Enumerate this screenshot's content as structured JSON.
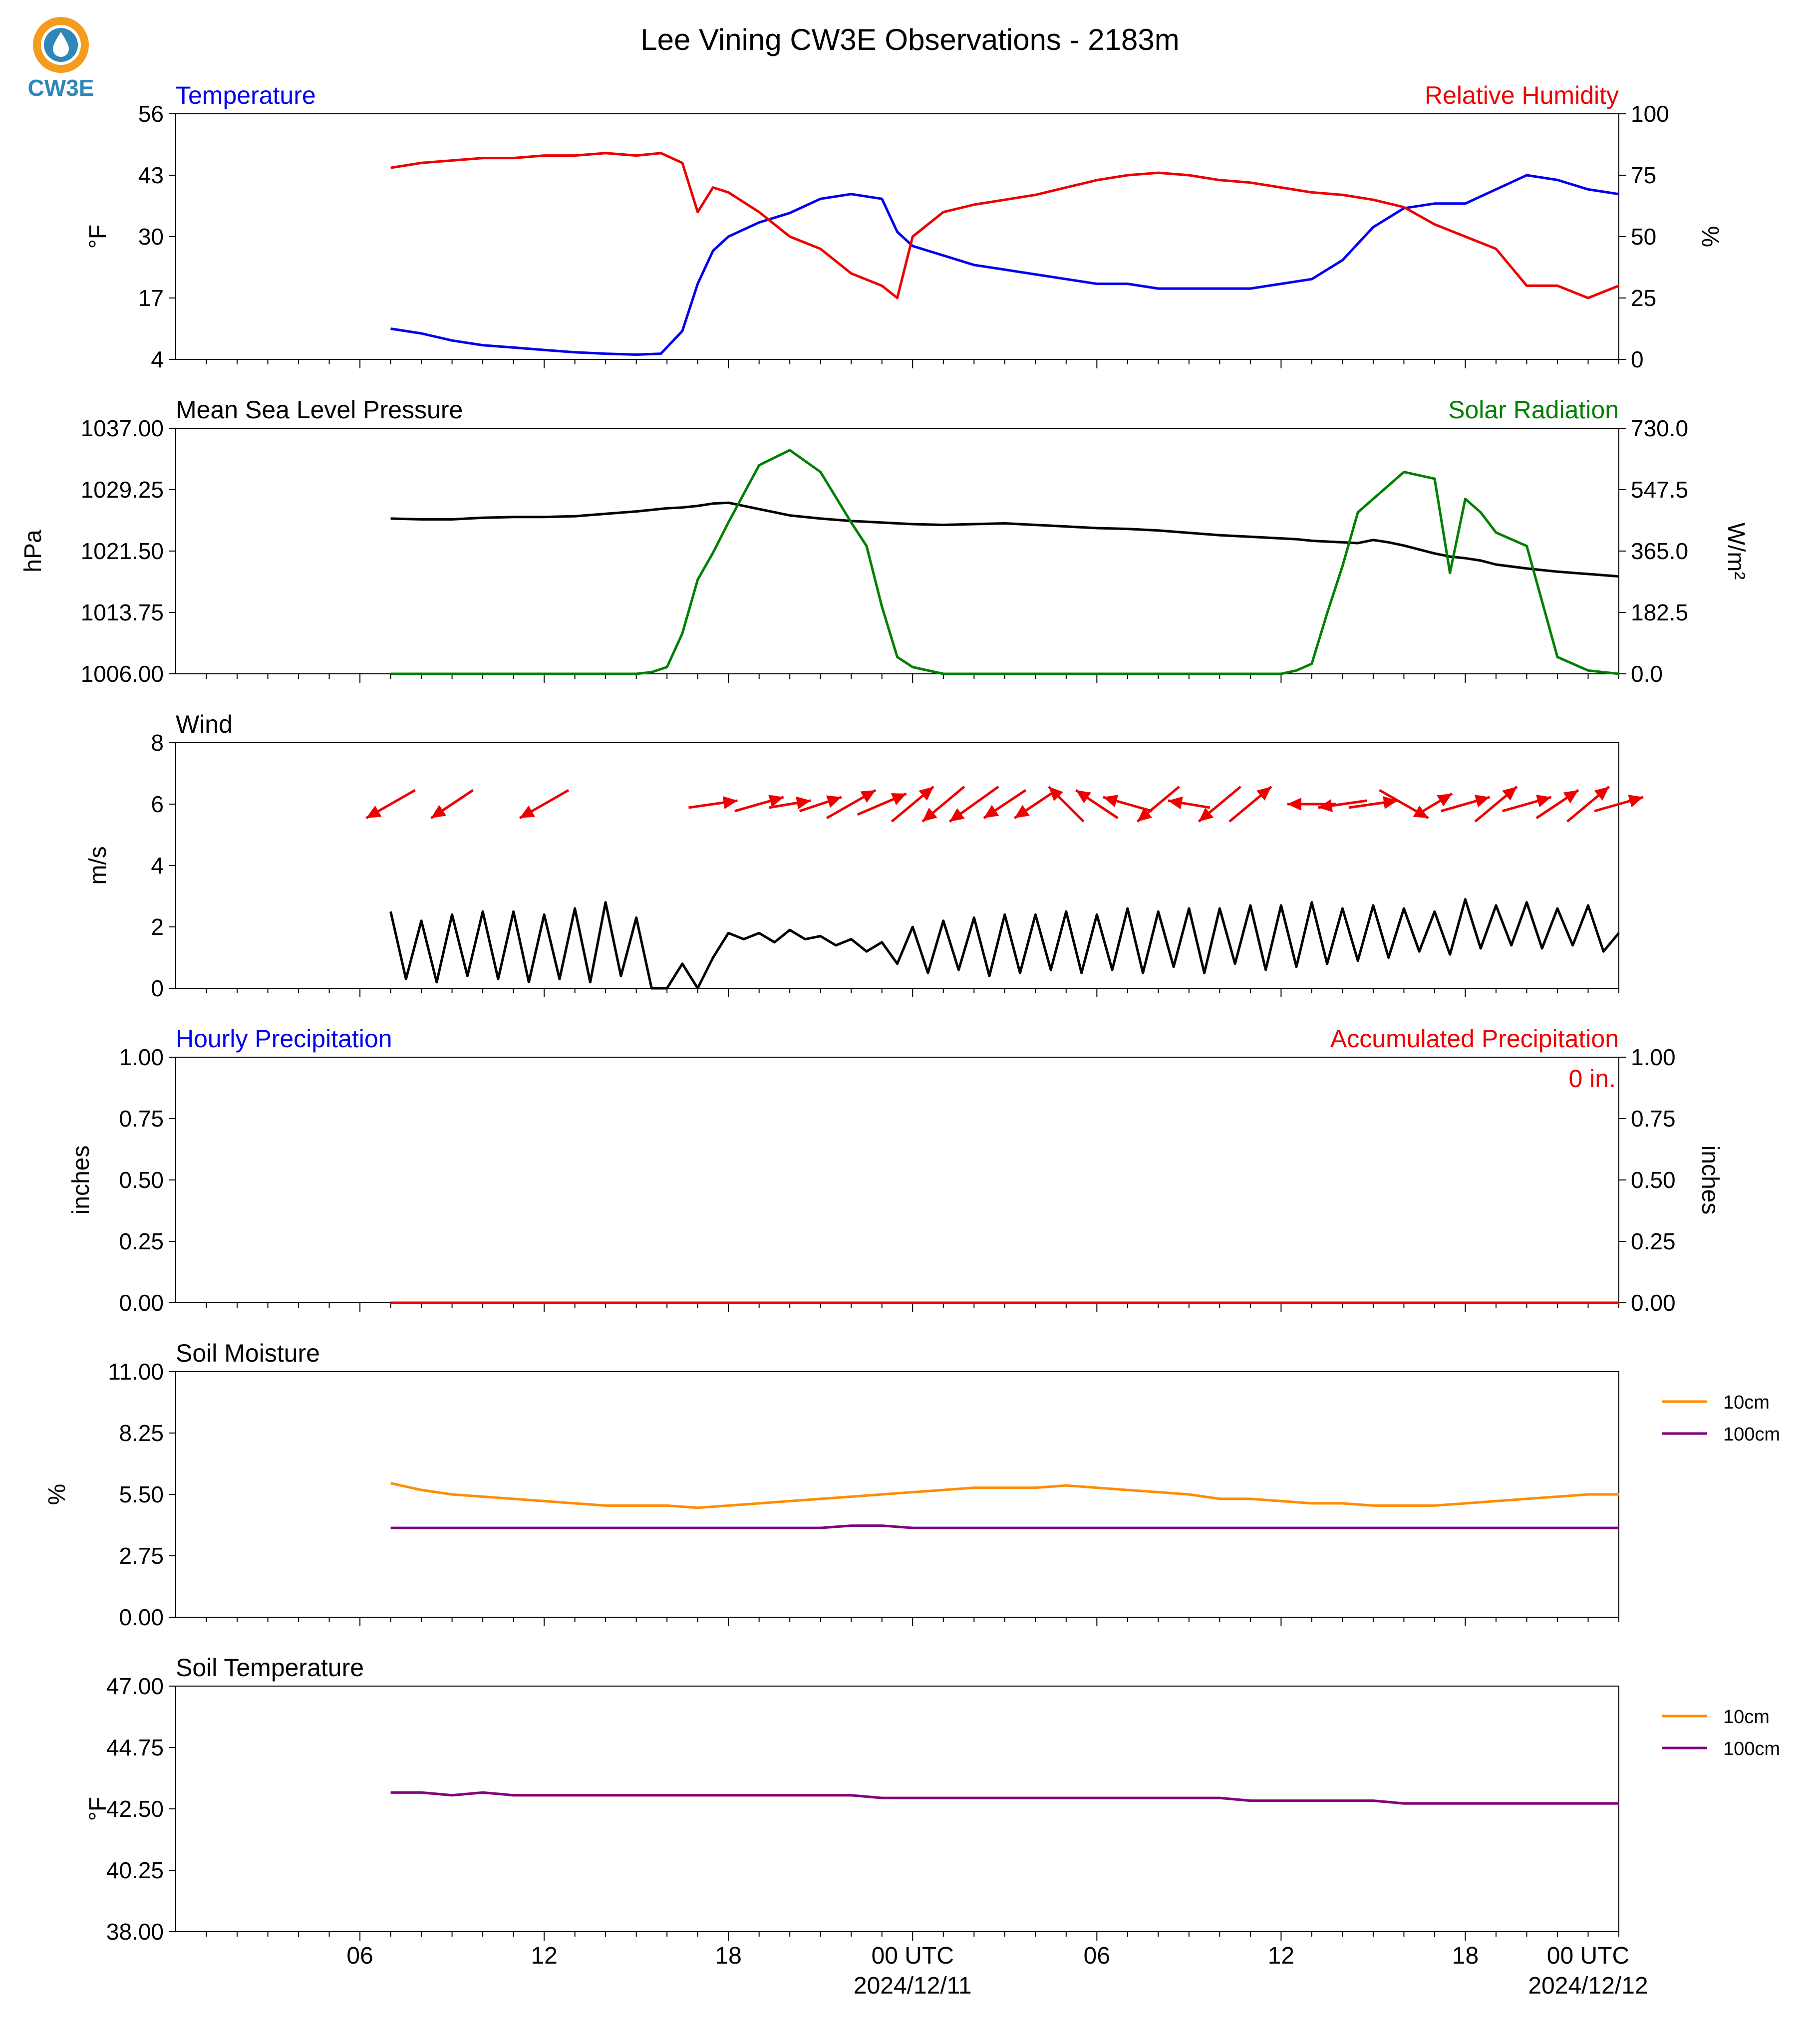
{
  "title": "Lee Vining CW3E Observations - 2183m",
  "logo": {
    "text": "CW3E",
    "color": "#2e87b7",
    "accent": "#f39c1f"
  },
  "x_axis": {
    "tick_labels": [
      "06",
      "12",
      "18",
      "00 UTC",
      "06",
      "12",
      "18",
      "00 UTC"
    ],
    "date_labels": [
      "2024/12/11",
      "2024/12/12"
    ],
    "range_hours": [
      0,
      47
    ]
  },
  "chart_data": [
    {
      "type": "line",
      "left_title": "Temperature",
      "right_title": "Relative Humidity",
      "left_ylabel": "°F",
      "right_ylabel": "%",
      "left_ticks": [
        "4",
        "17",
        "30",
        "43",
        "56"
      ],
      "right_ticks": [
        "0",
        "25",
        "50",
        "75",
        "100"
      ],
      "ylim_left": [
        4,
        56
      ],
      "ylim_right": [
        0,
        100
      ],
      "colors": {
        "left": "#0000ee",
        "right": "#ee0000"
      },
      "x": [
        7.0,
        8.0,
        9.0,
        10.0,
        11.0,
        12.0,
        13.0,
        14.0,
        15.0,
        15.8,
        16.5,
        17.0,
        17.5,
        18.0,
        19.0,
        20.0,
        21.0,
        22.0,
        23.0,
        23.5,
        24.0,
        25.0,
        26.0,
        27.0,
        28.0,
        29.0,
        30.0,
        31.0,
        32.0,
        33.0,
        34.0,
        35.0,
        36.0,
        37.0,
        38.0,
        39.0,
        40.0,
        41.0,
        42.0,
        43.0,
        44.0,
        45.0,
        46.0,
        47.0
      ],
      "series": [
        {
          "values": [
            10.5,
            9.5,
            8.0,
            7.0,
            6.5,
            6.0,
            5.5,
            5.2,
            5.0,
            5.2,
            10,
            20,
            27,
            30,
            33,
            35,
            38,
            39,
            38,
            31,
            28,
            26,
            24,
            23,
            22,
            21,
            20,
            20,
            19,
            19,
            19,
            19,
            20,
            21,
            25,
            32,
            36,
            37,
            37,
            40,
            43,
            42,
            40,
            39
          ]
        },
        {
          "values": [
            78,
            80,
            81,
            82,
            82,
            83,
            83,
            84,
            83,
            84,
            80,
            60,
            70,
            68,
            60,
            50,
            45,
            35,
            30,
            25,
            50,
            60,
            63,
            65,
            67,
            70,
            73,
            75,
            76,
            75,
            73,
            72,
            70,
            68,
            67,
            65,
            62,
            55,
            50,
            45,
            30,
            30,
            25,
            30
          ]
        }
      ]
    },
    {
      "type": "line",
      "left_title": "Mean Sea Level Pressure",
      "right_title": "Solar Radiation",
      "left_ylabel": "hPa",
      "right_ylabel": "W/m²",
      "left_ticks": [
        "1006.00",
        "1013.75",
        "1021.50",
        "1029.25",
        "1037.00"
      ],
      "right_ticks": [
        "0.0",
        "182.5",
        "365.0",
        "547.5",
        "730.0"
      ],
      "ylim_left": [
        1006,
        1037
      ],
      "ylim_right": [
        0,
        730
      ],
      "colors": {
        "left": "#000000",
        "right": "#008000"
      },
      "x": [
        7.0,
        8.0,
        9.0,
        10.0,
        11.0,
        12.0,
        13.0,
        14.0,
        15.0,
        15.5,
        16.0,
        16.5,
        17.0,
        17.5,
        18.0,
        19.0,
        20.0,
        21.0,
        22.0,
        22.5,
        23.0,
        23.5,
        24.0,
        25.0,
        26.0,
        27.0,
        28.0,
        29.0,
        30.0,
        31.0,
        32.0,
        33.0,
        34.0,
        35.0,
        36.0,
        36.5,
        37.0,
        37.5,
        38.0,
        38.5,
        39.0,
        39.5,
        40.0,
        41.0,
        41.5,
        42.0,
        42.5,
        43.0,
        44.0,
        45.0,
        46.0,
        47.0
      ],
      "series": [
        {
          "values": [
            1025.6,
            1025.5,
            1025.5,
            1025.7,
            1025.8,
            1025.8,
            1025.9,
            1026.2,
            1026.5,
            1026.7,
            1026.9,
            1027.0,
            1027.2,
            1027.5,
            1027.6,
            1026.8,
            1026.0,
            1025.6,
            1025.3,
            1025.2,
            1025.1,
            1025.0,
            1024.9,
            1024.8,
            1024.9,
            1025.0,
            1024.8,
            1024.6,
            1024.4,
            1024.3,
            1024.1,
            1023.8,
            1023.5,
            1023.3,
            1023.1,
            1023.0,
            1022.8,
            1022.7,
            1022.6,
            1022.5,
            1022.9,
            1022.6,
            1022.2,
            1021.2,
            1020.8,
            1020.6,
            1020.3,
            1019.8,
            1019.3,
            1018.9,
            1018.6,
            1018.3
          ]
        },
        {
          "values": [
            0,
            0,
            0,
            0,
            0,
            0,
            0,
            0,
            0,
            5,
            20,
            120,
            280,
            360,
            450,
            620,
            665,
            600,
            450,
            380,
            200,
            50,
            20,
            0,
            0,
            0,
            0,
            0,
            0,
            0,
            0,
            0,
            0,
            0,
            0,
            10,
            30,
            180,
            320,
            480,
            520,
            560,
            600,
            580,
            300,
            520,
            480,
            420,
            380,
            50,
            10,
            0
          ]
        }
      ]
    },
    {
      "type": "line",
      "left_title": "Wind",
      "left_ylabel": "m/s",
      "left_ticks": [
        "0",
        "2",
        "4",
        "6",
        "8"
      ],
      "ylim_left": [
        0,
        8
      ],
      "colors": {
        "left": "#000000",
        "arrows": "#ee0000"
      },
      "x": [
        7.0,
        7.5,
        8.0,
        8.5,
        9.0,
        9.5,
        10.0,
        10.5,
        11.0,
        11.5,
        12.0,
        12.5,
        13.0,
        13.5,
        14.0,
        14.5,
        15.0,
        15.5,
        16.0,
        16.5,
        17.0,
        17.5,
        18.0,
        18.5,
        19.0,
        19.5,
        20.0,
        20.5,
        21.0,
        21.5,
        22.0,
        22.5,
        23.0,
        23.5,
        24.0,
        24.5,
        25.0,
        25.5,
        26.0,
        26.5,
        27.0,
        27.5,
        28.0,
        28.5,
        29.0,
        29.5,
        30.0,
        30.5,
        31.0,
        31.5,
        32.0,
        32.5,
        33.0,
        33.5,
        34.0,
        34.5,
        35.0,
        35.5,
        36.0,
        36.5,
        37.0,
        37.5,
        38.0,
        38.5,
        39.0,
        39.5,
        40.0,
        40.5,
        41.0,
        41.5,
        42.0,
        42.5,
        43.0,
        43.5,
        44.0,
        44.5,
        45.0,
        45.5,
        46.0,
        46.5,
        47.0
      ],
      "series": [
        {
          "values": [
            2.5,
            0.3,
            2.2,
            0.2,
            2.4,
            0.4,
            2.5,
            0.3,
            2.5,
            0.2,
            2.4,
            0.3,
            2.6,
            0.2,
            2.8,
            0.4,
            2.3,
            0,
            0,
            0.8,
            0,
            1.0,
            1.8,
            1.6,
            1.8,
            1.5,
            1.9,
            1.6,
            1.7,
            1.4,
            1.6,
            1.2,
            1.5,
            0.8,
            2.0,
            0.5,
            2.2,
            0.6,
            2.3,
            0.4,
            2.4,
            0.5,
            2.4,
            0.6,
            2.5,
            0.5,
            2.4,
            0.6,
            2.6,
            0.5,
            2.5,
            0.7,
            2.6,
            0.5,
            2.6,
            0.8,
            2.7,
            0.6,
            2.7,
            0.7,
            2.8,
            0.8,
            2.6,
            0.9,
            2.7,
            1.0,
            2.6,
            1.2,
            2.5,
            1.1,
            2.9,
            1.3,
            2.7,
            1.4,
            2.8,
            1.3,
            2.6,
            1.4,
            2.7,
            1.2,
            1.8
          ]
        }
      ],
      "arrows": {
        "x": [
          7.0,
          9.0,
          12.0,
          17.5,
          19.0,
          20.0,
          21.0,
          22.0,
          23.0,
          24.0,
          25.0,
          26.0,
          27.0,
          28.0,
          29.0,
          30.0,
          31.0,
          32.0,
          33.0,
          34.0,
          35.0,
          37.0,
          38.0,
          39.0,
          40.0,
          41.0,
          42.0,
          43.0,
          44.0,
          45.0,
          46.0,
          47.0
        ],
        "u": [
          -3.5,
          -3.0,
          -3.5,
          3.5,
          3.5,
          3.0,
          3.0,
          3.5,
          3.5,
          3.0,
          -3.0,
          -3.5,
          -3.0,
          -3.0,
          -2.5,
          -3.0,
          -3.5,
          -3.0,
          -3.0,
          -3.0,
          3.0,
          -3.5,
          -3.5,
          3.5,
          3.5,
          2.5,
          3.5,
          3.0,
          3.5,
          3.0,
          3.0,
          3.5
        ],
        "v": [
          -2.0,
          -2.0,
          -2.0,
          0.5,
          1.0,
          0.5,
          1.0,
          2.0,
          1.5,
          2.5,
          -2.5,
          -2.5,
          -2.0,
          -2.0,
          2.5,
          2.0,
          1.0,
          -2.5,
          0.5,
          -2.5,
          2.5,
          0.0,
          -0.5,
          0.5,
          -2.0,
          1.5,
          1.0,
          2.5,
          1.0,
          2.0,
          2.5,
          1.0
        ]
      }
    },
    {
      "type": "line",
      "left_title": "Hourly Precipitation",
      "right_title": "Accumulated Precipitation",
      "left_ylabel": "inches",
      "right_ylabel": "inches",
      "left_ticks": [
        "0.00",
        "0.25",
        "0.50",
        "0.75",
        "1.00"
      ],
      "right_ticks": [
        "0.00",
        "0.25",
        "0.50",
        "0.75",
        "1.00"
      ],
      "ylim_left": [
        0,
        1
      ],
      "ylim_right": [
        0,
        1
      ],
      "annotation": "0 in.",
      "colors": {
        "left": "#0000ee",
        "right": "#ee0000"
      },
      "x": [
        7.0,
        47.0
      ],
      "series": [
        {
          "values": [
            0,
            0
          ]
        },
        {
          "values": [
            0,
            0
          ]
        }
      ]
    },
    {
      "type": "line",
      "left_title": "Soil Moisture",
      "left_ylabel": "%",
      "left_ticks": [
        "0.00",
        "2.75",
        "5.50",
        "8.25",
        "11.00"
      ],
      "ylim_left": [
        0,
        11
      ],
      "colors": {
        "s1": "#ff8c00",
        "s2": "#800080"
      },
      "x": [
        7.0,
        8.0,
        9.0,
        10.0,
        11.0,
        12.0,
        13.0,
        14.0,
        15.0,
        16.0,
        17.0,
        18.0,
        19.0,
        20.0,
        21.0,
        22.0,
        23.0,
        24.0,
        25.0,
        26.0,
        27.0,
        28.0,
        29.0,
        30.0,
        31.0,
        32.0,
        33.0,
        34.0,
        35.0,
        36.0,
        37.0,
        38.0,
        39.0,
        40.0,
        41.0,
        42.0,
        43.0,
        44.0,
        45.0,
        46.0,
        47.0
      ],
      "series": [
        {
          "name": "10cm",
          "values": [
            6.0,
            5.7,
            5.5,
            5.4,
            5.3,
            5.2,
            5.1,
            5.0,
            5.0,
            5.0,
            4.9,
            5.0,
            5.1,
            5.2,
            5.3,
            5.4,
            5.5,
            5.6,
            5.7,
            5.8,
            5.8,
            5.8,
            5.9,
            5.8,
            5.7,
            5.6,
            5.5,
            5.3,
            5.3,
            5.2,
            5.1,
            5.1,
            5.0,
            5.0,
            5.0,
            5.1,
            5.2,
            5.3,
            5.4,
            5.5,
            5.5
          ]
        },
        {
          "name": "100cm",
          "values": [
            4.0,
            4.0,
            4.0,
            4.0,
            4.0,
            4.0,
            4.0,
            4.0,
            4.0,
            4.0,
            4.0,
            4.0,
            4.0,
            4.0,
            4.0,
            4.1,
            4.1,
            4.0,
            4.0,
            4.0,
            4.0,
            4.0,
            4.0,
            4.0,
            4.0,
            4.0,
            4.0,
            4.0,
            4.0,
            4.0,
            4.0,
            4.0,
            4.0,
            4.0,
            4.0,
            4.0,
            4.0,
            4.0,
            4.0,
            4.0,
            4.0
          ]
        }
      ],
      "legend": [
        "10cm",
        "100cm"
      ]
    },
    {
      "type": "line",
      "left_title": "Soil Temperature",
      "left_ylabel": "°F",
      "left_ticks": [
        "38.00",
        "40.25",
        "42.50",
        "44.75",
        "47.00"
      ],
      "ylim_left": [
        38,
        47
      ],
      "colors": {
        "s1": "#ff8c00",
        "s2": "#800080"
      },
      "x": [
        7.0,
        8.0,
        9.0,
        10.0,
        11.0,
        12.0,
        13.0,
        14.0,
        15.0,
        16.0,
        17.0,
        18.0,
        19.0,
        20.0,
        21.0,
        22.0,
        23.0,
        24.0,
        25.0,
        26.0,
        27.0,
        28.0,
        29.0,
        30.0,
        31.0,
        32.0,
        33.0,
        34.0,
        35.0,
        36.0,
        37.0,
        38.0,
        39.0,
        40.0,
        41.0,
        42.0,
        43.0,
        44.0,
        45.0,
        46.0,
        47.0
      ],
      "series": [
        {
          "name": "10cm",
          "values": [
            43.1,
            43.1,
            43.0,
            43.1,
            43.0,
            43.0,
            43.0,
            43.0,
            43.0,
            43.0,
            43.0,
            43.0,
            43.0,
            43.0,
            43.0,
            43.0,
            42.9,
            42.9,
            42.9,
            42.9,
            42.9,
            42.9,
            42.9,
            42.9,
            42.9,
            42.9,
            42.9,
            42.9,
            42.8,
            42.8,
            42.8,
            42.8,
            42.8,
            42.7,
            42.7,
            42.7,
            42.7,
            42.7,
            42.7,
            42.7,
            42.7
          ]
        },
        {
          "name": "100cm",
          "values": [
            43.1,
            43.1,
            43.0,
            43.1,
            43.0,
            43.0,
            43.0,
            43.0,
            43.0,
            43.0,
            43.0,
            43.0,
            43.0,
            43.0,
            43.0,
            43.0,
            42.9,
            42.9,
            42.9,
            42.9,
            42.9,
            42.9,
            42.9,
            42.9,
            42.9,
            42.9,
            42.9,
            42.9,
            42.8,
            42.8,
            42.8,
            42.8,
            42.8,
            42.7,
            42.7,
            42.7,
            42.7,
            42.7,
            42.7,
            42.7,
            42.7
          ]
        }
      ],
      "legend": [
        "10cm",
        "100cm"
      ]
    }
  ]
}
